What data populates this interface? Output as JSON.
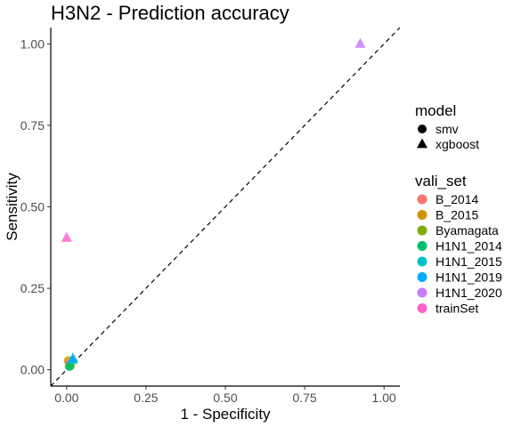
{
  "chart_data": {
    "type": "scatter",
    "title": "H3N2 - Prediction accuracy",
    "xlabel": "1 - Specificity",
    "ylabel": "Sensitivity",
    "xlim": [
      -0.05,
      1.05
    ],
    "ylim": [
      -0.05,
      1.05
    ],
    "xticks": [
      0.0,
      0.25,
      0.5,
      0.75,
      1.0
    ],
    "xtick_labels": [
      "0.00",
      "0.25",
      "0.50",
      "0.75",
      "1.00"
    ],
    "yticks": [
      0.0,
      0.25,
      0.5,
      0.75,
      1.0
    ],
    "ytick_labels": [
      "0.00",
      "0.25",
      "0.50",
      "0.75",
      "1.00"
    ],
    "grid": false,
    "reference_line": {
      "type": "diagonal",
      "style": "dashed",
      "x": [
        -0.05,
        1.05
      ],
      "y": [
        -0.05,
        1.05
      ]
    },
    "legend_position": "right",
    "shape_legend": {
      "title": "model",
      "items": [
        {
          "label": "smv",
          "shape": "circle"
        },
        {
          "label": "xgboost",
          "shape": "triangle"
        }
      ]
    },
    "color_legend": {
      "title": "vali_set",
      "items": [
        {
          "label": "B_2014",
          "color": "#F8766D"
        },
        {
          "label": "B_2015",
          "color": "#CD9600"
        },
        {
          "label": "Byamagata",
          "color": "#7CAE00"
        },
        {
          "label": "H1N1_2014",
          "color": "#00BE67"
        },
        {
          "label": "H1N1_2015",
          "color": "#00BFC4"
        },
        {
          "label": "H1N1_2019",
          "color": "#00A9FF"
        },
        {
          "label": "H1N1_2020",
          "color": "#C77CFF"
        },
        {
          "label": "trainSet",
          "color": "#FF61CC"
        }
      ]
    },
    "points": [
      {
        "vali_set": "trainSet",
        "model": "xgboost",
        "x": 0.0,
        "y": 0.405
      },
      {
        "vali_set": "H1N1_2020",
        "model": "xgboost",
        "x": 0.925,
        "y": 1.0
      },
      {
        "vali_set": "B_2015",
        "model": "smv",
        "x": 0.005,
        "y": 0.028
      },
      {
        "vali_set": "B_2014",
        "model": "smv",
        "x": 0.01,
        "y": 0.02
      },
      {
        "vali_set": "Byamagata",
        "model": "smv",
        "x": 0.012,
        "y": 0.012
      },
      {
        "vali_set": "H1N1_2014",
        "model": "smv",
        "x": 0.008,
        "y": 0.01
      },
      {
        "vali_set": "H1N1_2015",
        "model": "xgboost",
        "x": 0.018,
        "y": 0.03
      },
      {
        "vali_set": "H1N1_2019",
        "model": "xgboost",
        "x": 0.02,
        "y": 0.035
      }
    ]
  }
}
